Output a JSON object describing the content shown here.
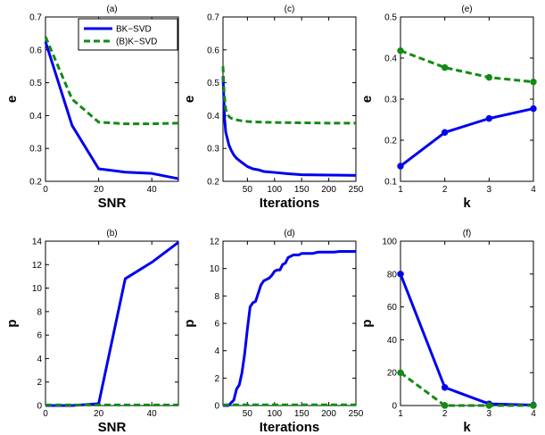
{
  "colors": {
    "blue": "#0000ee",
    "green": "#138a13"
  },
  "legend": {
    "location": "top-right of panel (a)",
    "entries": [
      "BK−SVD",
      "(B)K−SVD"
    ]
  },
  "chart_data": [
    {
      "id": "a",
      "type": "line",
      "title": "(a)",
      "xlabel": "SNR",
      "ylabel": "e",
      "xlim": [
        0,
        50
      ],
      "ylim": [
        0.2,
        0.7
      ],
      "xticks": [
        0,
        20,
        40
      ],
      "yticks": [
        0.2,
        0.3,
        0.4,
        0.5,
        0.6,
        0.7
      ],
      "series": [
        {
          "name": "BK−SVD",
          "color": "blue",
          "style": "solid",
          "markers": false,
          "x": [
            0,
            10,
            20,
            30,
            40,
            50
          ],
          "y": [
            0.625,
            0.37,
            0.238,
            0.228,
            0.224,
            0.208
          ]
        },
        {
          "name": "(B)K−SVD",
          "color": "green",
          "style": "dashed",
          "markers": false,
          "x": [
            0,
            10,
            20,
            30,
            40,
            50
          ],
          "y": [
            0.64,
            0.45,
            0.38,
            0.375,
            0.375,
            0.377
          ]
        }
      ]
    },
    {
      "id": "c",
      "type": "line",
      "title": "(c)",
      "xlabel": "Iterations",
      "ylabel": "e",
      "xlim": [
        5,
        250
      ],
      "ylim": [
        0.2,
        0.7
      ],
      "xticks": [
        50,
        100,
        150,
        200,
        250
      ],
      "yticks": [
        0.2,
        0.3,
        0.4,
        0.5,
        0.6,
        0.7
      ],
      "series": [
        {
          "name": "BK−SVD",
          "color": "blue",
          "style": "solid",
          "markers": false,
          "x": [
            5,
            8,
            10,
            13,
            16,
            20,
            25,
            30,
            40,
            50,
            60,
            70,
            80,
            100,
            125,
            150,
            200,
            250
          ],
          "y": [
            0.52,
            0.39,
            0.35,
            0.33,
            0.31,
            0.295,
            0.28,
            0.27,
            0.257,
            0.245,
            0.238,
            0.235,
            0.23,
            0.227,
            0.223,
            0.22,
            0.219,
            0.218
          ]
        },
        {
          "name": "(B)K−SVD",
          "color": "green",
          "style": "dashed",
          "markers": false,
          "x": [
            5,
            7,
            10,
            13,
            16,
            20,
            25,
            30,
            40,
            50,
            60,
            80,
            100,
            150,
            200,
            250
          ],
          "y": [
            0.55,
            0.47,
            0.42,
            0.405,
            0.397,
            0.392,
            0.389,
            0.387,
            0.384,
            0.382,
            0.381,
            0.38,
            0.379,
            0.378,
            0.377,
            0.377
          ]
        }
      ]
    },
    {
      "id": "e",
      "type": "line",
      "title": "(e)",
      "xlabel": "k",
      "ylabel": "e",
      "xlim": [
        1,
        4
      ],
      "ylim": [
        0.1,
        0.5
      ],
      "xticks": [
        1,
        2,
        3,
        4
      ],
      "yticks": [
        0.1,
        0.2,
        0.3,
        0.4,
        0.5
      ],
      "series": [
        {
          "name": "BK−SVD",
          "color": "blue",
          "style": "solid",
          "markers": true,
          "x": [
            1,
            2,
            3,
            4
          ],
          "y": [
            0.137,
            0.219,
            0.253,
            0.277
          ]
        },
        {
          "name": "(B)K−SVD",
          "color": "green",
          "style": "dashed",
          "markers": true,
          "x": [
            1,
            2,
            3,
            4
          ],
          "y": [
            0.418,
            0.377,
            0.353,
            0.342
          ]
        }
      ]
    },
    {
      "id": "b",
      "type": "line",
      "title": "(b)",
      "xlabel": "SNR",
      "ylabel": "p",
      "xlim": [
        0,
        50
      ],
      "ylim": [
        0,
        14
      ],
      "xticks": [
        0,
        20,
        40
      ],
      "yticks": [
        0,
        2,
        4,
        6,
        8,
        10,
        12,
        14
      ],
      "series": [
        {
          "name": "BK−SVD",
          "color": "blue",
          "style": "solid",
          "markers": false,
          "x": [
            0,
            10,
            20,
            30,
            40,
            50
          ],
          "y": [
            0,
            0,
            0.15,
            10.8,
            12.2,
            13.9
          ]
        },
        {
          "name": "(B)K−SVD",
          "color": "green",
          "style": "dashed",
          "markers": false,
          "x": [
            0,
            10,
            20,
            30,
            40,
            50
          ],
          "y": [
            0.05,
            0.05,
            0.05,
            0.05,
            0.05,
            0.05
          ]
        }
      ]
    },
    {
      "id": "d",
      "type": "line",
      "title": "(d)",
      "xlabel": "Iterations",
      "ylabel": "p",
      "xlim": [
        5,
        250
      ],
      "ylim": [
        0,
        12
      ],
      "xticks": [
        50,
        100,
        150,
        200,
        250
      ],
      "yticks": [
        0,
        2,
        4,
        6,
        8,
        10,
        12
      ],
      "series": [
        {
          "name": "BK−SVD",
          "color": "blue",
          "style": "solid",
          "markers": false,
          "x": [
            5,
            15,
            20,
            25,
            30,
            35,
            40,
            45,
            50,
            55,
            60,
            65,
            70,
            75,
            80,
            85,
            90,
            95,
            100,
            105,
            110,
            115,
            120,
            125,
            130,
            135,
            140,
            145,
            150,
            160,
            170,
            180,
            190,
            200,
            210,
            220,
            230,
            240,
            250
          ],
          "y": [
            0,
            0,
            0.2,
            0.4,
            1.2,
            1.5,
            2.4,
            3.8,
            5.6,
            7.2,
            7.5,
            7.6,
            8.2,
            8.8,
            9.1,
            9.2,
            9.3,
            9.5,
            9.8,
            9.9,
            9.9,
            10.3,
            10.4,
            10.8,
            10.9,
            11.0,
            11.0,
            11.0,
            11.1,
            11.1,
            11.1,
            11.2,
            11.2,
            11.2,
            11.2,
            11.25,
            11.25,
            11.25,
            11.25
          ]
        },
        {
          "name": "(B)K−SVD",
          "color": "green",
          "style": "dashed",
          "markers": false,
          "x": [
            5,
            250
          ],
          "y": [
            0.05,
            0.05
          ]
        }
      ]
    },
    {
      "id": "f",
      "type": "line",
      "title": "(f)",
      "xlabel": "k",
      "ylabel": "p",
      "xlim": [
        1,
        4
      ],
      "ylim": [
        0,
        100
      ],
      "xticks": [
        1,
        2,
        3,
        4
      ],
      "yticks": [
        0,
        20,
        40,
        60,
        80,
        100
      ],
      "series": [
        {
          "name": "BK−SVD",
          "color": "blue",
          "style": "solid",
          "markers": true,
          "x": [
            1,
            2,
            3,
            4
          ],
          "y": [
            80,
            11,
            1,
            0.3
          ]
        },
        {
          "name": "(B)K−SVD",
          "color": "green",
          "style": "dashed",
          "markers": true,
          "x": [
            1,
            2,
            3,
            4
          ],
          "y": [
            20,
            0,
            0,
            0
          ]
        }
      ]
    }
  ]
}
